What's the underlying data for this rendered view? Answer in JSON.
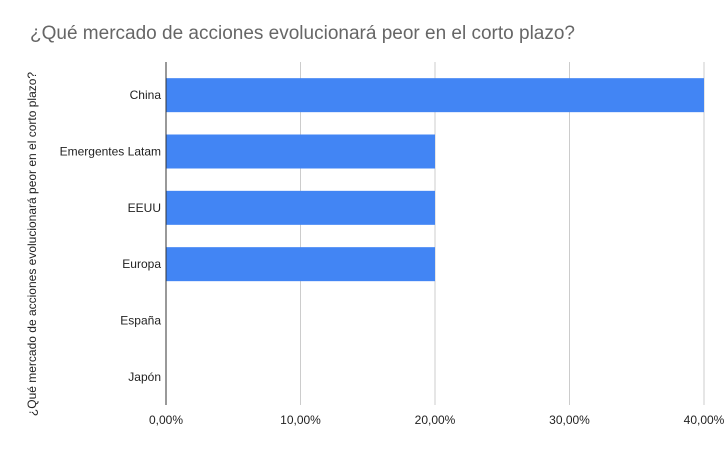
{
  "chart_data": {
    "type": "bar",
    "orientation": "horizontal",
    "title": "¿Qué mercado de acciones evolucionará peor en el corto plazo?",
    "ylabel": "¿Qué mercado de acciones evolucionará peor en el corto plazo?",
    "xlabel": "",
    "categories": [
      "China",
      "Emergentes Latam",
      "EEUU",
      "Europa",
      "España",
      "Japón"
    ],
    "values": [
      40,
      20,
      20,
      20,
      0,
      0
    ],
    "unit": "%",
    "xlim": [
      0,
      40
    ],
    "x_ticks": [
      "0,00%",
      "10,00%",
      "20,00%",
      "30,00%",
      "40,00%"
    ],
    "x_tick_values": [
      0,
      10,
      20,
      30,
      40
    ],
    "grid": true,
    "legend": "none",
    "bar_color": "#4285f4",
    "grid_color": "#cccccc",
    "axis_color": "#333333"
  }
}
